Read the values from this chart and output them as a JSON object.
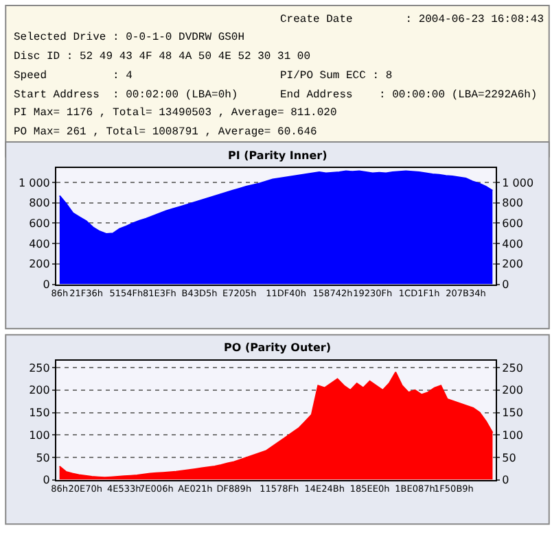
{
  "chart_data": [
    {
      "type": "area",
      "title": "PI (Parity Inner)",
      "annotations": [
        "Create Date        : 2004-06-23 16:08:43",
        "Selected Drive : 0-0-1-0 DVDRW GS0H",
        "Disc ID : 52 49 43 4F 48 4A 50 4E 52 30 31 00",
        "Speed          : 4",
        "PI/PO Sum ECC : 8",
        "Start Address  : 00:02:00 (LBA=0h)",
        "End Address    : 00:00:00 (LBA=2292A6h)",
        "PI Max= 1176 , Total= 13490503 , Average= 811.020",
        "PO Max= 261 , Total= 1008791 , Average= 60.646"
      ],
      "categories": [
        "86h",
        null,
        null,
        null,
        "21F36h",
        null,
        null,
        null,
        null,
        null,
        "5154Fh",
        null,
        null,
        null,
        null,
        "81E3Fh",
        null,
        null,
        null,
        null,
        null,
        "B43D5h",
        null,
        null,
        null,
        null,
        null,
        "E7205h",
        null,
        null,
        null,
        null,
        null,
        null,
        "11DF40h",
        null,
        null,
        null,
        null,
        null,
        null,
        "158742h",
        null,
        null,
        null,
        null,
        null,
        "19230Fh",
        null,
        null,
        null,
        null,
        null,
        null,
        "1CD1F1h",
        null,
        null,
        null,
        null,
        null,
        null,
        "207B34h",
        null,
        null,
        null,
        null
      ],
      "series": [
        {
          "color": "#0000ff",
          "values": [
            870,
            790,
            700,
            660,
            620,
            560,
            520,
            495,
            500,
            545,
            570,
            600,
            625,
            645,
            670,
            695,
            720,
            740,
            760,
            780,
            800,
            820,
            840,
            860,
            880,
            900,
            920,
            940,
            960,
            975,
            990,
            1010,
            1030,
            1040,
            1050,
            1060,
            1070,
            1080,
            1090,
            1100,
            1090,
            1095,
            1100,
            1110,
            1105,
            1110,
            1100,
            1090,
            1095,
            1090,
            1100,
            1105,
            1110,
            1105,
            1100,
            1090,
            1080,
            1075,
            1065,
            1060,
            1050,
            1040,
            1010,
            990,
            960,
            920
          ]
        }
      ],
      "ylim": [
        0,
        1140
      ],
      "yticks": [
        0,
        200,
        400,
        600,
        800,
        {
          "value": 1000,
          "label": "1 000"
        }
      ],
      "y2lim": [
        0,
        1140
      ],
      "y2ticks": [
        0,
        200,
        400,
        600,
        800,
        {
          "value": 1000,
          "label": "1 000"
        }
      ],
      "grid": "y"
    },
    {
      "type": "area",
      "title": "PO (Parity Outer)",
      "categories": [
        "86h",
        null,
        null,
        null,
        "20E70h",
        null,
        null,
        null,
        null,
        null,
        "4E533h",
        null,
        null,
        null,
        null,
        "7E006h",
        null,
        null,
        null,
        null,
        null,
        "AE021h",
        null,
        null,
        null,
        null,
        null,
        "DF889h",
        null,
        null,
        null,
        null,
        null,
        null,
        "11578Fh",
        null,
        null,
        null,
        null,
        null,
        null,
        "14E24Bh",
        null,
        null,
        null,
        null,
        null,
        null,
        "185EE0h",
        null,
        null,
        null,
        null,
        null,
        null,
        "1BE087h",
        null,
        null,
        null,
        null,
        null,
        "1F50B9h",
        null,
        null,
        null,
        null,
        null,
        null
      ],
      "series": [
        {
          "color": "#ff0000",
          "values": [
            30,
            18,
            14,
            11,
            9,
            7,
            6,
            5,
            6,
            7,
            8,
            9,
            10,
            12,
            14,
            15,
            16,
            17,
            18,
            20,
            22,
            24,
            26,
            28,
            30,
            33,
            37,
            40,
            45,
            50,
            55,
            60,
            65,
            75,
            85,
            95,
            105,
            115,
            130,
            145,
            210,
            205,
            215,
            225,
            210,
            200,
            215,
            205,
            220,
            210,
            200,
            215,
            240,
            210,
            195,
            200,
            190,
            195,
            205,
            210,
            180,
            175,
            170,
            165,
            160,
            150,
            130,
            105
          ]
        }
      ],
      "ylim": [
        0,
        265
      ],
      "yticks": [
        0,
        50,
        100,
        150,
        200,
        250
      ],
      "y2lim": [
        0,
        265
      ],
      "y2ticks": [
        0,
        50,
        100,
        150,
        200,
        250
      ],
      "grid": "y"
    }
  ]
}
